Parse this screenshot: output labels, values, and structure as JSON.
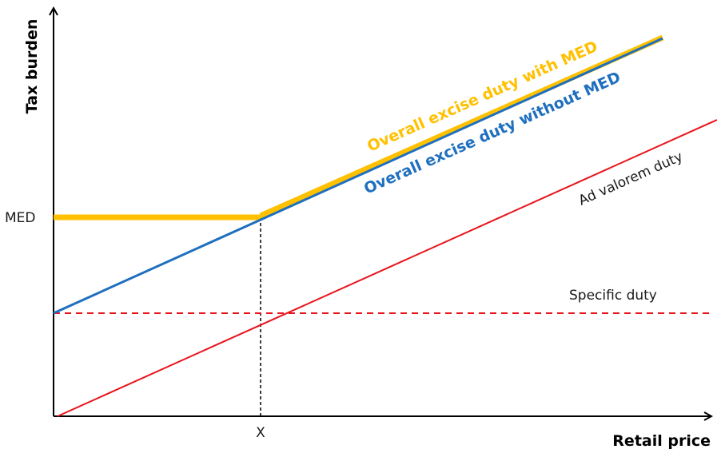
{
  "diagram": {
    "axes": {
      "y_label": "Tax burden",
      "x_label": "Retail price",
      "y_tick": "MED",
      "x_tick": "X"
    },
    "lines": {
      "with_med": {
        "label": "Overall excise duty with MED",
        "color": "#FFC000"
      },
      "without_med": {
        "label": "Overall excise duty without MED",
        "color": "#1F6FBF"
      },
      "ad_valorem": {
        "label": "Ad valorem duty",
        "color": "#E8141B"
      },
      "specific": {
        "label": "Specific duty",
        "color": "#E8141B"
      }
    },
    "colors": {
      "axis": "#000000",
      "guide": "#000000"
    }
  }
}
